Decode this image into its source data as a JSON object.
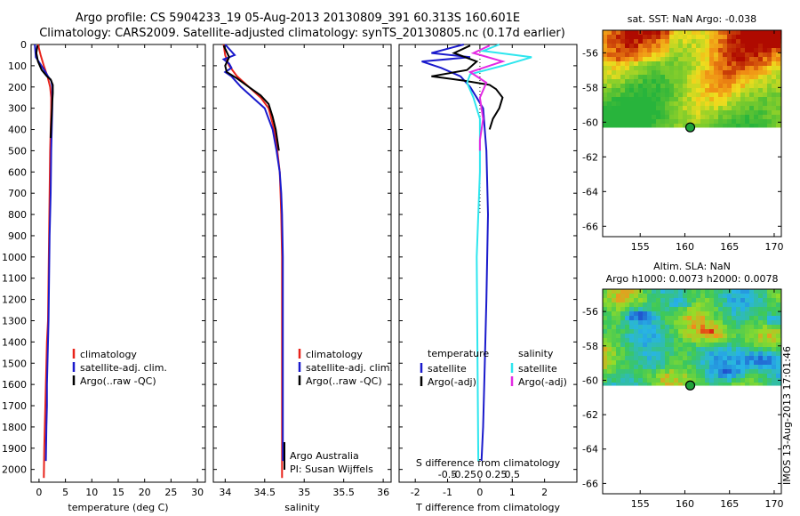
{
  "header": {
    "title_line1": "Argo profile: CS 5904233_19 05-Aug-2013 20130809_391 60.313S 160.601E",
    "title_line2": "Climatology: CARS2009. Satellite-adjusted climatology: synTS_20130805.nc (0.17d earlier)"
  },
  "credit": "IMOS 13-Aug-2013 17:01:46",
  "colors": {
    "climatology": "#e8231b",
    "satellite": "#1a1acc",
    "argo": "#000000",
    "salinity_satellite": "#2ee6ee",
    "salinity_argo": "#e32ae3",
    "sst_low": "#1aa83a",
    "sst_high": "#b00000",
    "marker": "#1fa33a"
  },
  "depth_ticks": [
    0,
    100,
    200,
    300,
    400,
    500,
    600,
    700,
    800,
    900,
    1000,
    1100,
    1200,
    1300,
    1400,
    1500,
    1600,
    1700,
    1800,
    1900,
    2000
  ],
  "chart_data": [
    {
      "type": "line",
      "name": "temperature-profile",
      "xlabel": "temperature (deg C)",
      "ylabel": "",
      "xlim": [
        -1.5,
        31.5
      ],
      "ylim": [
        2060,
        0
      ],
      "xticks": [
        "0",
        "5",
        "10",
        "15",
        "20",
        "25",
        "30"
      ],
      "xtick_values": [
        0,
        5,
        10,
        15,
        20,
        25,
        30
      ],
      "legend": [
        "climatology",
        "satellite-adj. clim.",
        "Argo(..raw -QC)"
      ],
      "series": [
        {
          "name": "climatology",
          "color_key": "climatology",
          "x": [
            -0.2,
            0.3,
            0.9,
            1.6,
            2.1,
            2.3,
            2.3,
            2.2,
            2.1,
            2.0,
            1.9,
            1.8,
            1.7,
            1.5,
            1.4,
            1.3,
            1.2,
            1.1,
            1.0,
            0.9
          ],
          "y": [
            0,
            50,
            100,
            150,
            200,
            250,
            300,
            400,
            500,
            700,
            900,
            1100,
            1300,
            1400,
            1500,
            1600,
            1700,
            1800,
            1900,
            2040
          ]
        },
        {
          "name": "satellite-adj. clim.",
          "color_key": "satellite",
          "x": [
            -0.8,
            -0.6,
            0.2,
            1.0,
            1.7,
            2.3,
            2.5,
            2.5,
            2.4,
            2.3,
            2.2,
            2.0,
            1.9,
            1.8,
            1.6,
            1.5,
            1.5,
            1.4,
            1.3
          ],
          "y": [
            0,
            60,
            90,
            120,
            150,
            170,
            200,
            300,
            400,
            500,
            700,
            900,
            1100,
            1300,
            1500,
            1600,
            1700,
            1800,
            1960
          ]
        },
        {
          "name": "Argo(..raw -QC)",
          "color_key": "argo",
          "x": [
            -0.3,
            -0.5,
            -0.2,
            0.5,
            1.5,
            2.2,
            2.6,
            2.6,
            2.5,
            2.4,
            2.3,
            2.2
          ],
          "y": [
            5,
            40,
            80,
            120,
            150,
            165,
            190,
            230,
            270,
            330,
            380,
            440
          ]
        }
      ]
    },
    {
      "type": "line",
      "name": "salinity-profile",
      "xlabel": "salinity",
      "ylabel": "",
      "xlim": [
        33.85,
        36.1
      ],
      "ylim": [
        2060,
        0
      ],
      "xticks": [
        "34",
        "34.5",
        "35",
        "35.5",
        "36"
      ],
      "xtick_values": [
        34,
        34.5,
        35,
        35.5,
        36
      ],
      "legend": [
        "climatology",
        "satellite-adj. clim.",
        "Argo(..raw -QC)"
      ],
      "annotation_line1": "Argo Australia",
      "annotation_line2": "PI: Susan Wijffels",
      "series": [
        {
          "name": "climatology",
          "color_key": "climatology",
          "x": [
            33.98,
            34.0,
            34.05,
            34.15,
            34.3,
            34.45,
            34.55,
            34.62,
            34.66,
            34.69,
            34.7,
            34.71,
            34.72,
            34.72,
            34.72,
            34.72
          ],
          "y": [
            0,
            50,
            100,
            150,
            200,
            250,
            300,
            400,
            500,
            600,
            700,
            800,
            1000,
            1200,
            1600,
            2040
          ]
        },
        {
          "name": "satellite-adj. clim.",
          "color_key": "satellite",
          "x": [
            34.0,
            34.12,
            33.98,
            34.05,
            34.08,
            34.0,
            34.08,
            34.2,
            34.35,
            34.5,
            34.6,
            34.65,
            34.69,
            34.71,
            34.72,
            34.73,
            34.73,
            34.73
          ],
          "y": [
            0,
            50,
            70,
            90,
            110,
            130,
            150,
            200,
            250,
            300,
            400,
            500,
            600,
            700,
            800,
            1000,
            1400,
            1960
          ]
        },
        {
          "name": "Argo(..raw -QC)",
          "color_key": "argo",
          "x": [
            33.98,
            34.05,
            34.0,
            34.02,
            34.15,
            34.3,
            34.45,
            34.55,
            34.6,
            34.64,
            34.66,
            34.68
          ],
          "y": [
            5,
            60,
            100,
            130,
            160,
            200,
            240,
            280,
            340,
            400,
            450,
            500
          ]
        }
      ]
    },
    {
      "type": "line",
      "name": "difference-profile",
      "xlabel": "T difference from climatology",
      "xlabel2": "S difference from climatology",
      "ylabel": "",
      "xlim": [
        -2.5,
        3.0
      ],
      "ylim": [
        2060,
        0
      ],
      "xticks": [
        "-2",
        "-1",
        "0",
        "1",
        "2"
      ],
      "xtick_values": [
        -2,
        -1,
        0,
        1,
        2
      ],
      "x2ticks": [
        "-0.5",
        "-0.25",
        "0",
        "0.25",
        "0.5"
      ],
      "x2tick_values": [
        -0.5,
        -0.25,
        0,
        0.25,
        0.5
      ],
      "legend_group1_title": "temperature",
      "legend_group2_title": "salinity",
      "legend": [
        "satellite",
        "Argo(-adj)",
        "satellite",
        "Argo(-adj)"
      ],
      "series": [
        {
          "name": "satellite",
          "color_key": "satellite",
          "x": [
            -0.5,
            -1.5,
            -0.3,
            -1.8,
            -1.2,
            -0.6,
            -0.3,
            -0.1,
            0.1,
            0.2,
            0.25,
            0.2,
            0.15,
            0.1,
            0.05
          ],
          "y": [
            0,
            40,
            60,
            80,
            110,
            150,
            200,
            250,
            300,
            500,
            800,
            1200,
            1500,
            1800,
            1960
          ]
        },
        {
          "name": "Argo(-adj)",
          "color_key": "argo",
          "x": [
            -0.3,
            -0.8,
            -0.1,
            -0.4,
            -1.5,
            -0.5,
            0.3,
            0.5,
            0.7,
            0.6,
            0.4,
            0.3
          ],
          "y": [
            5,
            40,
            80,
            120,
            150,
            170,
            190,
            210,
            250,
            300,
            350,
            400
          ]
        },
        {
          "name": "satellite",
          "color_key": "salinity_satellite",
          "x": [
            0.6,
            0.1,
            1.6,
            0.7,
            -0.3,
            -0.4,
            -0.2,
            0.0,
            0.0,
            -0.1,
            -0.05
          ],
          "y": [
            0,
            30,
            60,
            100,
            140,
            180,
            250,
            350,
            600,
            1000,
            1960
          ]
        },
        {
          "name": "Argo(-adj)",
          "color_key": "salinity_argo",
          "x": [
            0.3,
            -0.2,
            0.7,
            -0.3,
            0.2,
            0.0,
            0.1,
            0.0,
            0.0
          ],
          "y": [
            5,
            40,
            80,
            130,
            180,
            250,
            350,
            450,
            500
          ]
        }
      ]
    }
  ],
  "maps": [
    {
      "name": "sst-map",
      "title": "sat. SST: NaN Argo: -0.038",
      "title_line2": "",
      "xticks": [
        "155",
        "160",
        "165",
        "170"
      ],
      "xtick_values": [
        155,
        160,
        165,
        170
      ],
      "yticks": [
        "-56",
        "-58",
        "-60",
        "-62",
        "-64",
        "-66"
      ],
      "ytick_values": [
        -56,
        -58,
        -60,
        -62,
        -64,
        -66
      ],
      "xlim": [
        150.8,
        170.8
      ],
      "ylim": [
        -66.6,
        -54.7
      ],
      "data_south_limit": -60.3,
      "marker": {
        "lon": 160.6,
        "lat": -60.3
      }
    },
    {
      "name": "sla-map",
      "title": "Altim. SLA: NaN",
      "title_line2": "Argo h1000: 0.0073 h2000: 0.0078",
      "xticks": [
        "155",
        "160",
        "165",
        "170"
      ],
      "xtick_values": [
        155,
        160,
        165,
        170
      ],
      "yticks": [
        "-56",
        "-58",
        "-60",
        "-62",
        "-64",
        "-66"
      ],
      "ytick_values": [
        -56,
        -58,
        -60,
        -62,
        -64,
        -66
      ],
      "xlim": [
        150.8,
        170.8
      ],
      "ylim": [
        -66.6,
        -54.7
      ],
      "data_south_limit": -60.3,
      "marker": {
        "lon": 160.6,
        "lat": -60.3
      }
    }
  ]
}
